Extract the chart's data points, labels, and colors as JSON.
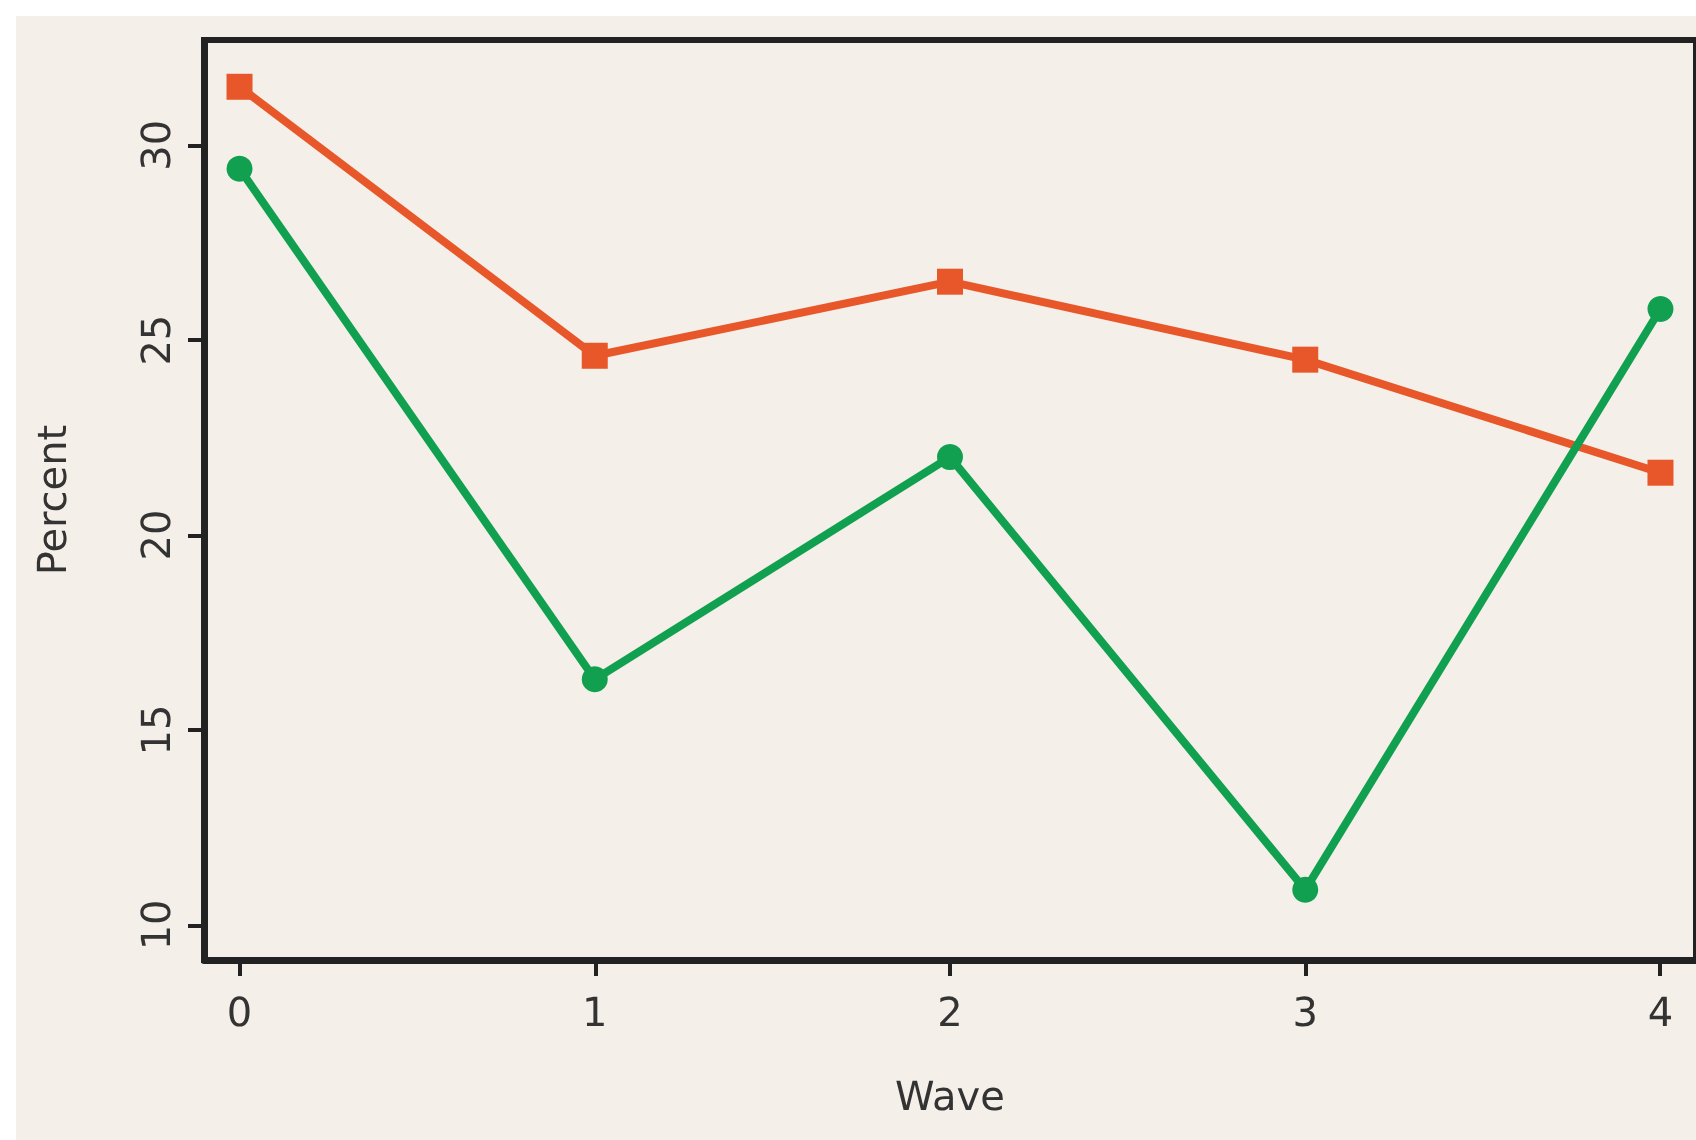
{
  "chart_data": {
    "type": "line",
    "xlabel": "Wave",
    "ylabel": "Percent",
    "x": [
      0,
      1,
      2,
      3,
      4
    ],
    "series": [
      {
        "color": "#e8572a",
        "marker": "square",
        "values": [
          31.5,
          24.6,
          26.5,
          24.5,
          21.6
        ]
      },
      {
        "color": "#10a050",
        "marker": "circle",
        "values": [
          29.4,
          16.3,
          22.0,
          10.9,
          25.8
        ]
      }
    ],
    "xlim": [
      -0.1,
      4.1
    ],
    "xticks": [
      0,
      1,
      2,
      3,
      4
    ],
    "ylim": [
      9.1,
      32.7
    ],
    "yticks": [
      10,
      15,
      20,
      25,
      30
    ],
    "grid": false,
    "line_style": "solid"
  }
}
